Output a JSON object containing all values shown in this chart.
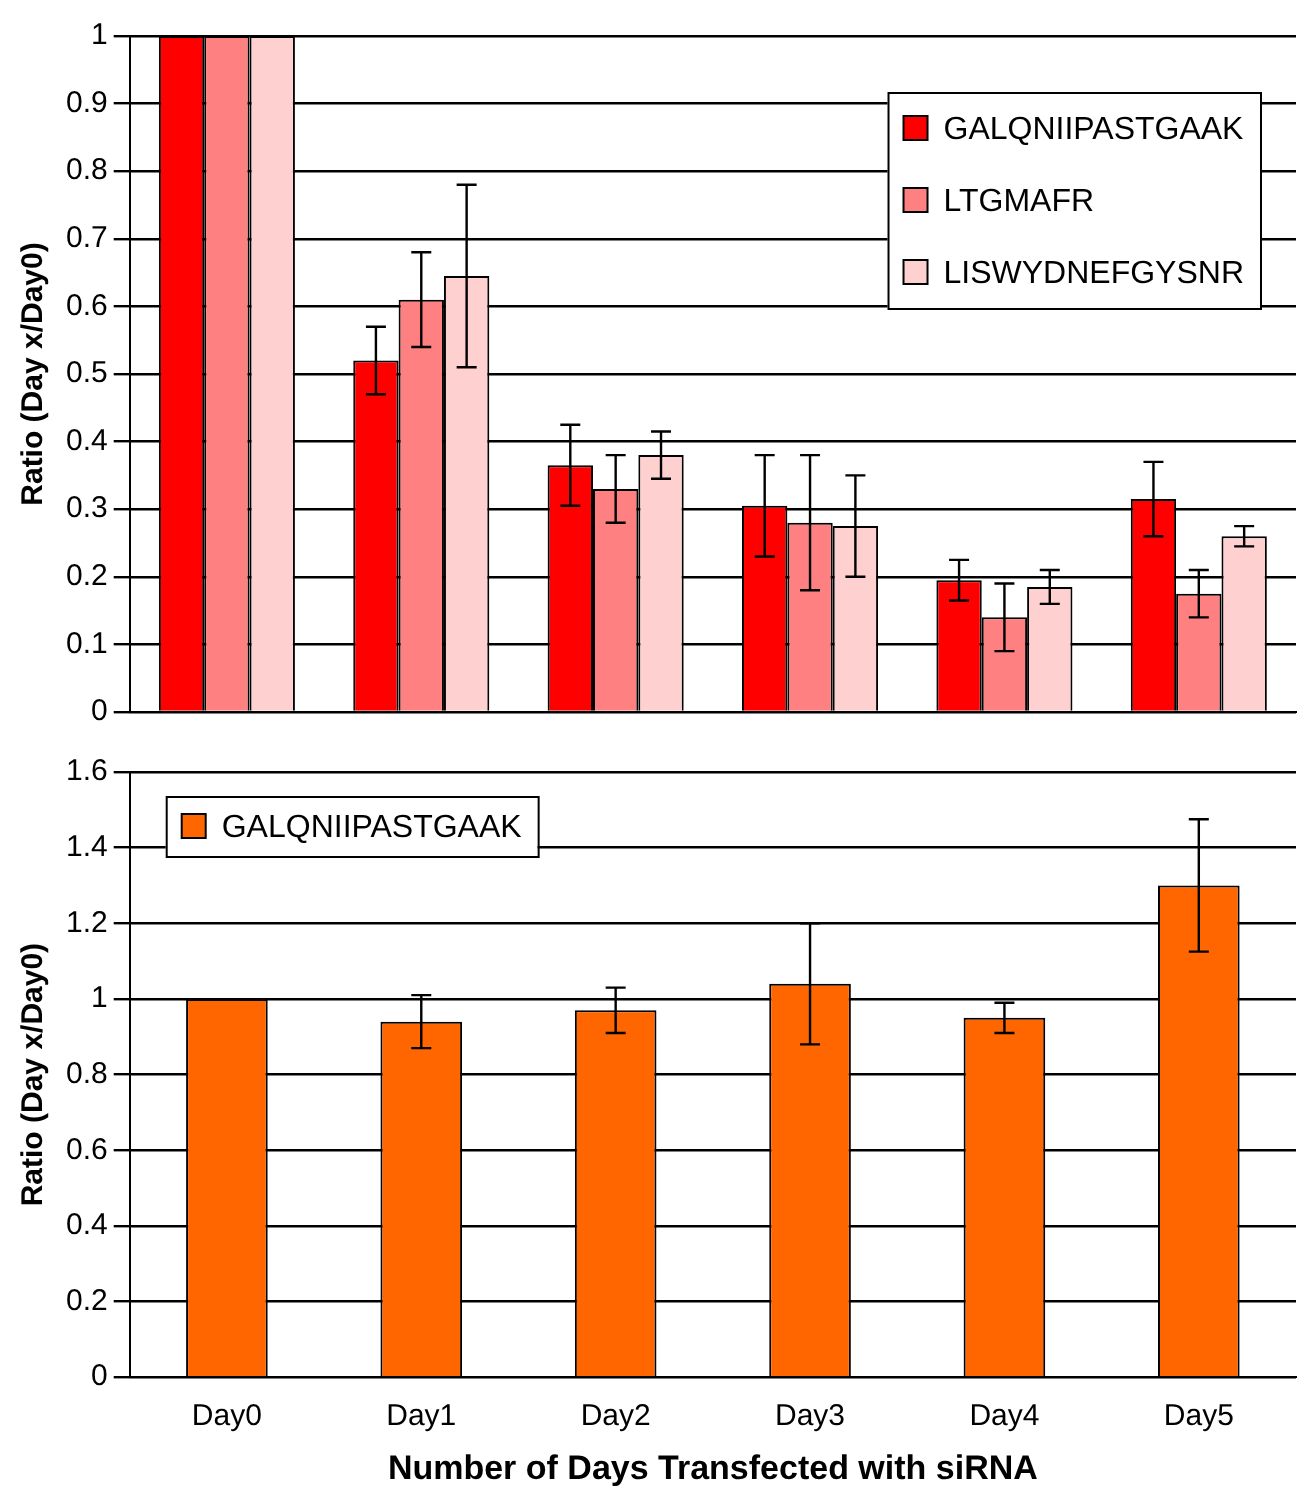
{
  "chart_data": [
    {
      "type": "bar",
      "ylabel": "Ratio (Day x/Day0)",
      "categories": [
        null,
        null,
        null,
        null,
        null,
        null
      ],
      "ylim": [
        0,
        1
      ],
      "yticks": [
        0,
        0.1,
        0.2,
        0.3,
        0.4,
        0.5,
        0.6,
        0.7,
        0.8,
        0.9,
        1
      ],
      "grid": "y",
      "legend": "top right",
      "tick_labels": "y",
      "series": [
        {
          "name": "GALQNIIPASTGAAK",
          "color": "#ff0000",
          "values": [
            1,
            0.52,
            0.365,
            0.305,
            0.195,
            0.315
          ],
          "errors": [
            null,
            0.05,
            0.06,
            0.075,
            0.03,
            0.055
          ]
        },
        {
          "name": "LTGMAFR",
          "color": "#ff8080",
          "values": [
            1,
            0.61,
            0.33,
            0.28,
            0.14,
            0.175
          ],
          "errors": [
            null,
            0.07,
            0.05,
            0.1,
            0.05,
            0.035
          ]
        },
        {
          "name": "LISWYDNEFGYSNR",
          "color": "#ffd0d0",
          "values": [
            1,
            0.645,
            0.38,
            0.275,
            0.185,
            0.26
          ],
          "errors": [
            null,
            0.135,
            0.035,
            0.075,
            0.025,
            0.015
          ]
        }
      ]
    },
    {
      "type": "bar",
      "ylabel": "Ratio (Day x/Day0)",
      "xlabel": "Number of Days Transfected with siRNA",
      "categories": [
        "Day0",
        "Day1",
        "Day2",
        "Day3",
        "Day4",
        "Day5"
      ],
      "ylim": [
        0,
        1.6
      ],
      "yticks": [
        0,
        0.2,
        0.4,
        0.6,
        0.8,
        1,
        1.2,
        1.4,
        1.6
      ],
      "grid": "y",
      "legend": "top left",
      "series": [
        {
          "name": "GALQNIIPASTGAAK",
          "color": "#ff6600",
          "values": [
            1,
            0.94,
            0.97,
            1.04,
            0.95,
            1.3
          ],
          "errors": [
            null,
            0.07,
            0.06,
            0.16,
            0.04,
            0.175
          ]
        }
      ]
    }
  ]
}
